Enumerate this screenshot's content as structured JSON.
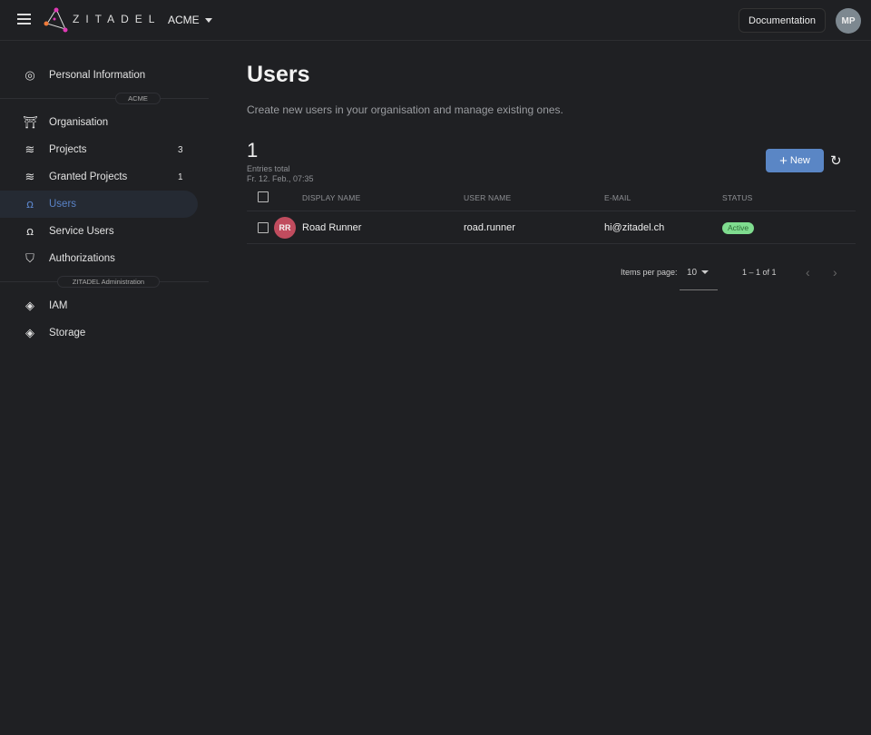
{
  "header": {
    "brand": "ZITADEL",
    "org": "ACME",
    "docs_label": "Documentation",
    "user_initials": "MP"
  },
  "sidebar": {
    "personal": "Personal Information",
    "section_org": "ACME",
    "items": [
      {
        "label": "Organisation",
        "count": ""
      },
      {
        "label": "Projects",
        "count": "3"
      },
      {
        "label": "Granted Projects",
        "count": "1"
      },
      {
        "label": "Users",
        "count": ""
      },
      {
        "label": "Service Users",
        "count": ""
      },
      {
        "label": "Authorizations",
        "count": ""
      }
    ],
    "section_admin": "ZITADEL Administration",
    "admin_items": [
      {
        "label": "IAM"
      },
      {
        "label": "Storage"
      }
    ]
  },
  "main": {
    "title": "Users",
    "description": "Create new users in your organisation and manage existing ones.",
    "total": "1",
    "total_label": "Entries total",
    "timestamp": "Fr. 12. Feb., 07:35",
    "new_label": "New",
    "columns": [
      "DISPLAY NAME",
      "USER NAME",
      "E-MAIL",
      "STATUS"
    ],
    "rows": [
      {
        "initials": "RR",
        "display_name": "Road Runner",
        "user_name": "road.runner",
        "email": "hi@zitadel.ch",
        "status": "Active"
      }
    ],
    "paginator": {
      "items_per_page_label": "Items per page:",
      "page_size": "10",
      "range": "1 – 1 of 1"
    }
  },
  "colors": {
    "accent": "#5a86c5",
    "active_badge": "#7fdc8f",
    "avatar": "#c04c5e"
  }
}
